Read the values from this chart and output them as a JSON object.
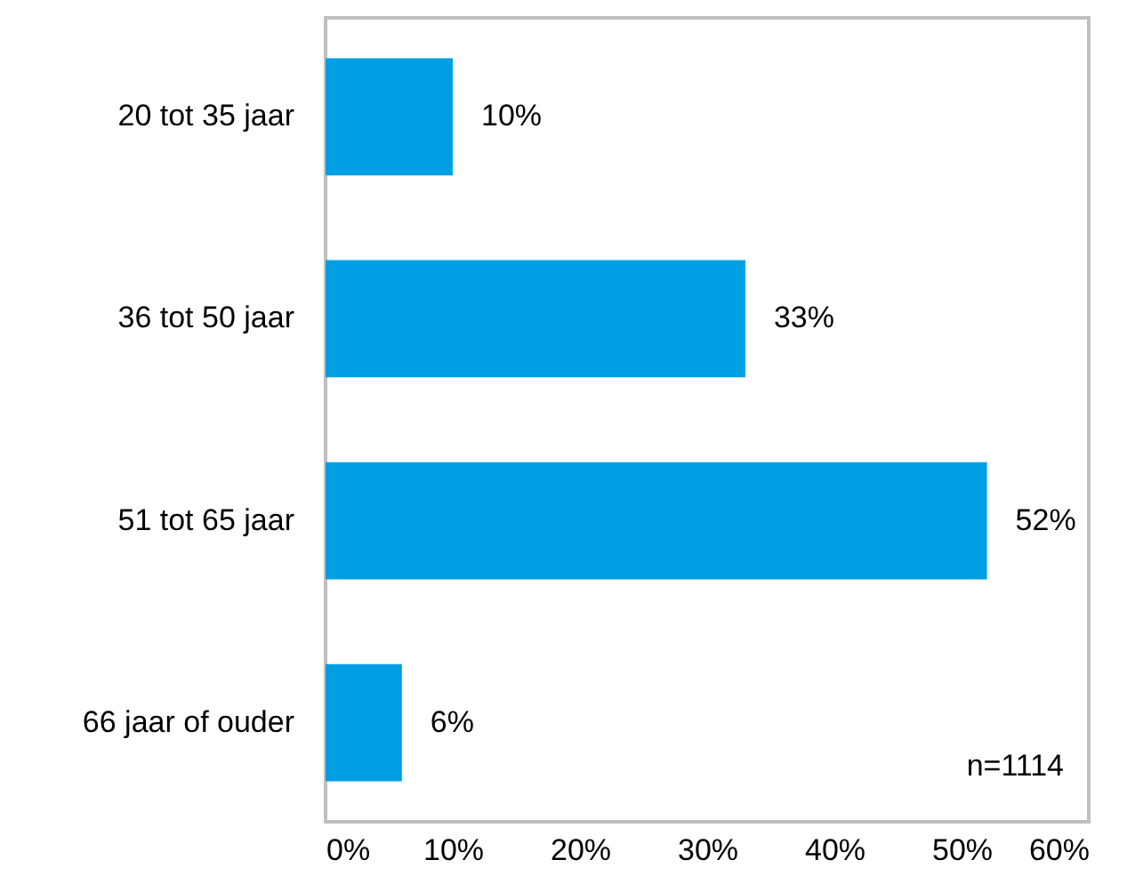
{
  "chart_data": {
    "type": "bar",
    "orientation": "horizontal",
    "categories": [
      "20 tot 35 jaar",
      "36 tot 50 jaar",
      "51 tot 65 jaar",
      "66 jaar of ouder"
    ],
    "values": [
      10,
      33,
      52,
      6
    ],
    "value_labels": [
      "10%",
      "33%",
      "52%",
      "6%"
    ],
    "color": "#009fe3",
    "xlim": [
      0,
      60
    ],
    "xticks": [
      {
        "value": 0,
        "label": "0%"
      },
      {
        "value": 10,
        "label": "10%"
      },
      {
        "value": 20,
        "label": "20%"
      },
      {
        "value": 30,
        "label": "30%"
      },
      {
        "value": 40,
        "label": "40%"
      },
      {
        "value": 50,
        "label": "50%"
      },
      {
        "value": 60,
        "label": "60%"
      }
    ],
    "annotations": [
      "n=1114"
    ],
    "grid": false
  }
}
